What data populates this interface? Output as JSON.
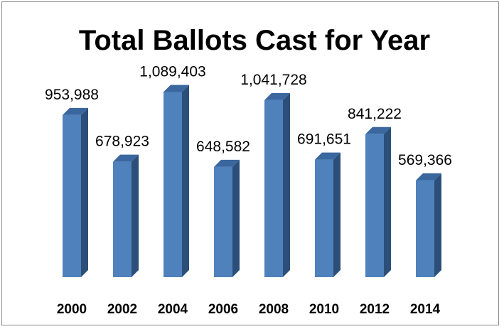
{
  "chart_data": {
    "type": "bar",
    "title": "Total Ballots Cast for Year",
    "categories": [
      "2000",
      "2002",
      "2004",
      "2006",
      "2008",
      "2010",
      "2012",
      "2014"
    ],
    "values": [
      953988,
      678923,
      1089403,
      648582,
      1041728,
      691651,
      841222,
      569366
    ],
    "value_labels": [
      "953,988",
      "678,923",
      "1,089,403",
      "648,582",
      "1,041,728",
      "691,651",
      "841,222",
      "569,366"
    ],
    "xlabel": "",
    "ylabel": "",
    "ylim": [
      0,
      1200000
    ],
    "grid": false,
    "legend": "none",
    "style": "3d-column"
  },
  "colors": {
    "bar_front": "#4f81bd",
    "bar_side": "#2c4f7a",
    "bar_top": "#3a679e",
    "frame": "#8a8a8a"
  }
}
